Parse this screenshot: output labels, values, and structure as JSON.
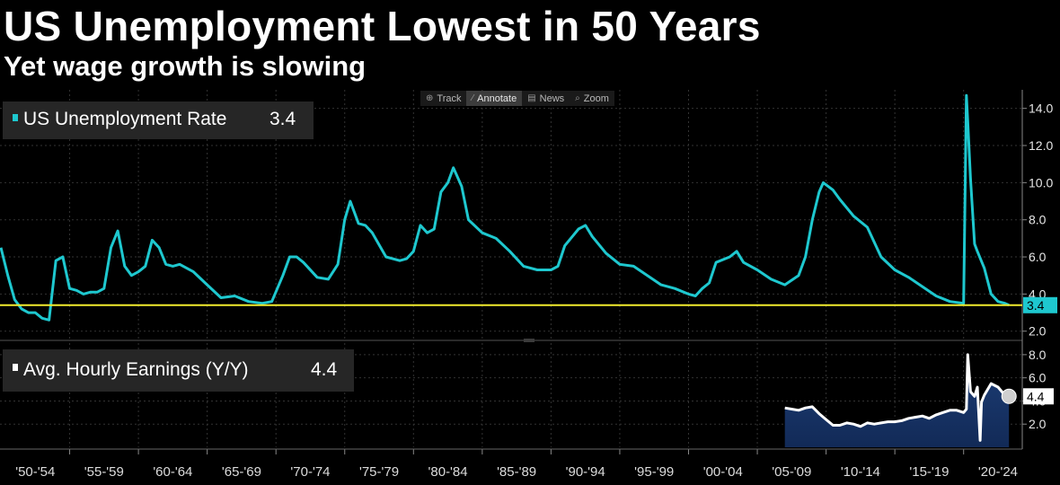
{
  "header": {
    "title": "US Unemployment Lowest in 50 Years",
    "subtitle": "Yet wage growth is slowing"
  },
  "toolbar": {
    "items": [
      {
        "label": "Track",
        "icon": "crosshair-icon"
      },
      {
        "label": "Annotate",
        "icon": "pencil-icon",
        "active": true
      },
      {
        "label": "News",
        "icon": "news-icon"
      },
      {
        "label": "Zoom",
        "icon": "magnifier-icon"
      }
    ]
  },
  "colors": {
    "background": "#000000",
    "unemployment_line": "#1ec8cf",
    "reference_line": "#f2ec2e",
    "earnings_line": "#ffffff",
    "earnings_fill": "#122a57"
  },
  "chart_data": [
    {
      "type": "line",
      "legend": {
        "label": "US Unemployment Rate",
        "last_value": "3.4"
      },
      "reference_line": {
        "value": 3.4,
        "label": "3.4"
      },
      "ylim": [
        1.6,
        15.0
      ],
      "yticks": [
        "2.0",
        "4.0",
        "6.0",
        "8.0",
        "10.0",
        "12.0",
        "14.0"
      ],
      "grid": true,
      "series": [
        {
          "name": "US Unemployment Rate",
          "x": [
            1950.0,
            1950.5,
            1951.0,
            1951.5,
            1952.0,
            1952.5,
            1953.0,
            1953.5,
            1954.0,
            1954.5,
            1955.0,
            1955.5,
            1956.0,
            1956.5,
            1957.0,
            1957.5,
            1958.0,
            1958.5,
            1959.0,
            1959.5,
            1960.0,
            1960.5,
            1961.0,
            1961.5,
            1962.0,
            1962.5,
            1963.0,
            1964.0,
            1965.0,
            1966.0,
            1967.0,
            1968.0,
            1969.0,
            1969.7,
            1970.5,
            1971.0,
            1971.5,
            1972.0,
            1973.0,
            1973.8,
            1974.5,
            1975.0,
            1975.4,
            1976.0,
            1976.5,
            1977.0,
            1978.0,
            1979.0,
            1979.5,
            1980.0,
            1980.5,
            1981.0,
            1981.5,
            1982.0,
            1982.5,
            1982.9,
            1983.5,
            1984.0,
            1985.0,
            1986.0,
            1987.0,
            1988.0,
            1989.0,
            1990.0,
            1990.5,
            1991.0,
            1992.0,
            1992.5,
            1993.0,
            1994.0,
            1995.0,
            1996.0,
            1997.0,
            1998.0,
            1999.0,
            2000.0,
            2000.5,
            2001.0,
            2001.5,
            2002.0,
            2003.0,
            2003.5,
            2004.0,
            2005.0,
            2006.0,
            2007.0,
            2008.0,
            2008.5,
            2009.0,
            2009.5,
            2009.8,
            2010.5,
            2011.0,
            2012.0,
            2013.0,
            2014.0,
            2015.0,
            2016.0,
            2017.0,
            2018.0,
            2019.0,
            2020.0,
            2020.2,
            2020.3,
            2020.5,
            2020.8,
            2021.0,
            2021.5,
            2022.0,
            2022.5,
            2023.0,
            2023.3
          ],
          "values": [
            6.5,
            5.0,
            3.7,
            3.2,
            3.0,
            3.0,
            2.7,
            2.6,
            5.8,
            6.0,
            4.3,
            4.2,
            4.0,
            4.1,
            4.1,
            4.3,
            6.5,
            7.4,
            5.5,
            5.0,
            5.2,
            5.5,
            6.9,
            6.5,
            5.6,
            5.5,
            5.6,
            5.2,
            4.5,
            3.8,
            3.9,
            3.6,
            3.5,
            3.6,
            5.0,
            6.0,
            6.0,
            5.7,
            4.9,
            4.8,
            5.6,
            8.0,
            9.0,
            7.8,
            7.7,
            7.3,
            6.0,
            5.8,
            5.9,
            6.3,
            7.7,
            7.3,
            7.5,
            9.5,
            10.0,
            10.8,
            9.8,
            8.0,
            7.3,
            7.0,
            6.3,
            5.5,
            5.3,
            5.3,
            5.5,
            6.6,
            7.5,
            7.7,
            7.1,
            6.2,
            5.6,
            5.5,
            5.0,
            4.5,
            4.3,
            4.0,
            3.9,
            4.3,
            4.6,
            5.7,
            6.0,
            6.3,
            5.7,
            5.3,
            4.8,
            4.5,
            5.0,
            6.0,
            8.0,
            9.5,
            10.0,
            9.6,
            9.1,
            8.2,
            7.6,
            6.0,
            5.3,
            4.9,
            4.4,
            3.9,
            3.6,
            3.5,
            14.7,
            13.3,
            10.2,
            6.7,
            6.3,
            5.4,
            4.0,
            3.6,
            3.5,
            3.4
          ]
        }
      ]
    },
    {
      "type": "area",
      "legend": {
        "label": "Avg. Hourly Earnings (Y/Y)",
        "last_value": "4.4"
      },
      "last_value_marker": {
        "value": 4.4,
        "label": "4.4"
      },
      "ylim": [
        0.0,
        9.0
      ],
      "yticks": [
        "2.0",
        "4.0",
        "6.0",
        "8.0"
      ],
      "grid": true,
      "series": [
        {
          "name": "Avg. Hourly Earnings (Y/Y)",
          "x": [
            2007.0,
            2007.5,
            2008.0,
            2008.5,
            2009.0,
            2009.5,
            2010.0,
            2010.5,
            2011.0,
            2011.5,
            2012.0,
            2012.5,
            2013.0,
            2013.5,
            2014.0,
            2014.5,
            2015.0,
            2015.5,
            2016.0,
            2016.5,
            2017.0,
            2017.5,
            2018.0,
            2018.5,
            2019.0,
            2019.5,
            2020.0,
            2020.2,
            2020.3,
            2020.5,
            2020.8,
            2021.0,
            2021.2,
            2021.3,
            2021.5,
            2022.0,
            2022.5,
            2023.0,
            2023.3
          ],
          "values": [
            3.4,
            3.3,
            3.2,
            3.4,
            3.5,
            2.9,
            2.4,
            1.9,
            1.9,
            2.1,
            2.0,
            1.8,
            2.1,
            2.0,
            2.1,
            2.2,
            2.2,
            2.3,
            2.5,
            2.6,
            2.7,
            2.5,
            2.8,
            3.0,
            3.2,
            3.2,
            3.0,
            3.3,
            8.0,
            4.8,
            4.4,
            5.2,
            0.6,
            3.9,
            4.5,
            5.5,
            5.2,
            4.5,
            4.4
          ]
        }
      ]
    }
  ],
  "x_axis": {
    "labels": [
      "'50-'54",
      "'55-'59",
      "'60-'64",
      "'65-'69",
      "'70-'74",
      "'75-'79",
      "'80-'84",
      "'85-'89",
      "'90-'94",
      "'95-'99",
      "'00-'04",
      "'05-'09",
      "'10-'14",
      "'15-'19",
      "'20-'24"
    ]
  }
}
